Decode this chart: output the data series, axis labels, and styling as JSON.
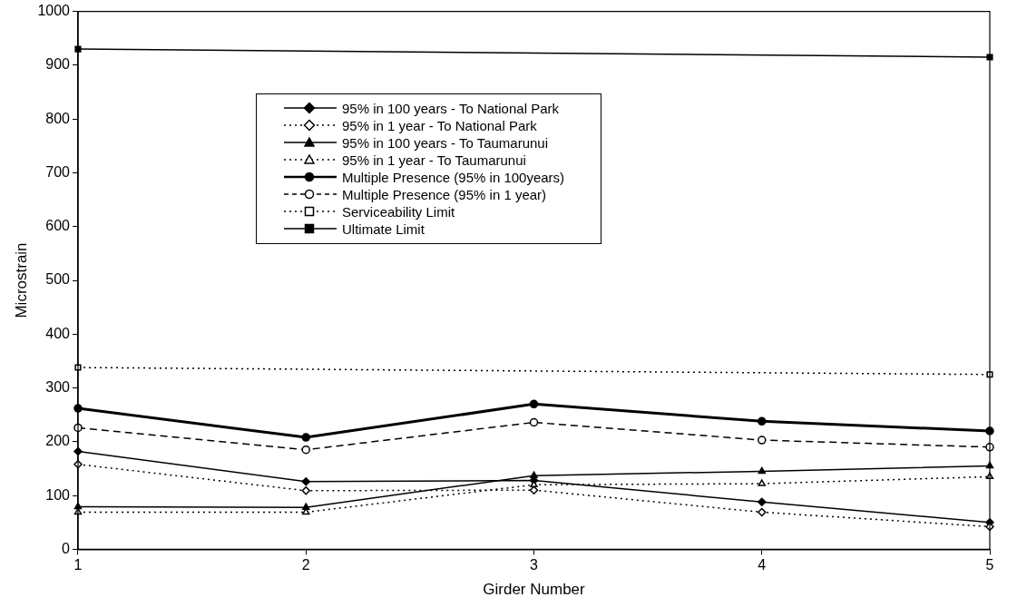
{
  "chart_data": {
    "type": "line",
    "xlabel": "Girder Number",
    "ylabel": "Microstrain",
    "x": [
      1,
      2,
      3,
      4,
      5
    ],
    "xlim": [
      1,
      5
    ],
    "xticks": [
      1,
      2,
      3,
      4,
      5
    ],
    "ylim": [
      0,
      1000
    ],
    "yticks": [
      0,
      100,
      200,
      300,
      400,
      500,
      600,
      700,
      800,
      900,
      1000
    ],
    "grid": false,
    "legend": "top",
    "series": [
      {
        "name": "95% in 100 years - To National Park",
        "color": "#000000",
        "marker": "diamond",
        "line_style": "solid",
        "values": [
          182,
          126,
          128,
          88,
          50
        ]
      },
      {
        "name": "95% in 1 year - To National Park",
        "color": "#000000",
        "marker": "diamond",
        "line_style": "dotted",
        "values": [
          158,
          109,
          110,
          69,
          42
        ]
      },
      {
        "name": "95% in 100 years - To Taumarunui",
        "color": "#000000",
        "marker": "triangle",
        "line_style": "solid",
        "values": [
          79,
          78,
          137,
          145,
          155
        ]
      },
      {
        "name": "95% in 1 year - To Taumarunui",
        "color": "#000000",
        "marker": "triangle",
        "line_style": "dotted",
        "values": [
          69,
          69,
          120,
          122,
          135
        ]
      },
      {
        "name": "Multiple Presence (95% in 100years)",
        "color": "#000000",
        "marker": "circle",
        "line_style": "solid",
        "values": [
          262,
          208,
          270,
          238,
          220
        ]
      },
      {
        "name": "Multiple Presence (95% in 1 year)",
        "color": "#000000",
        "marker": "circle",
        "line_style": "dashed",
        "values": [
          226,
          185,
          236,
          203,
          190
        ]
      },
      {
        "name": "Serviceability Limit",
        "color": "#000000",
        "marker": "square",
        "line_style": "dotted",
        "values": [
          338,
          null,
          null,
          null,
          325
        ]
      },
      {
        "name": "Ultimate Limit",
        "color": "#000000",
        "marker": "square",
        "line_style": "solid",
        "values": [
          930,
          null,
          null,
          null,
          915
        ]
      }
    ]
  }
}
